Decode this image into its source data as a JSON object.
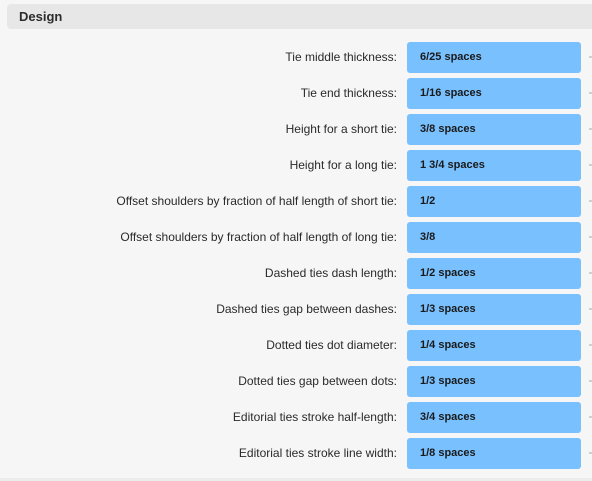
{
  "section": {
    "title": "Design"
  },
  "rows": [
    {
      "label": "Tie middle thickness:",
      "value": "6/25 spaces"
    },
    {
      "label": "Tie end thickness:",
      "value": "1/16 spaces"
    },
    {
      "label": "Height for a short tie:",
      "value": "3/8 spaces"
    },
    {
      "label": "Height for a long tie:",
      "value": "1 3/4 spaces"
    },
    {
      "label": "Offset shoulders by fraction of half length of short tie:",
      "value": "1/2"
    },
    {
      "label": "Offset shoulders by fraction of half length of long tie:",
      "value": "3/8"
    },
    {
      "label": "Dashed ties dash length:",
      "value": "1/2 spaces"
    },
    {
      "label": "Dashed ties gap between dashes:",
      "value": "1/3 spaces"
    },
    {
      "label": "Dotted ties dot diameter:",
      "value": "1/4 spaces"
    },
    {
      "label": "Dotted ties gap between dots:",
      "value": "1/3 spaces"
    },
    {
      "label": "Editorial ties stroke half-length:",
      "value": "3/4 spaces"
    },
    {
      "label": "Editorial ties stroke line width:",
      "value": "1/8 spaces"
    }
  ],
  "colors": {
    "field_background": "#79c0ff",
    "header_background": "#e7e7e7",
    "panel_background": "#f6f6f6"
  }
}
